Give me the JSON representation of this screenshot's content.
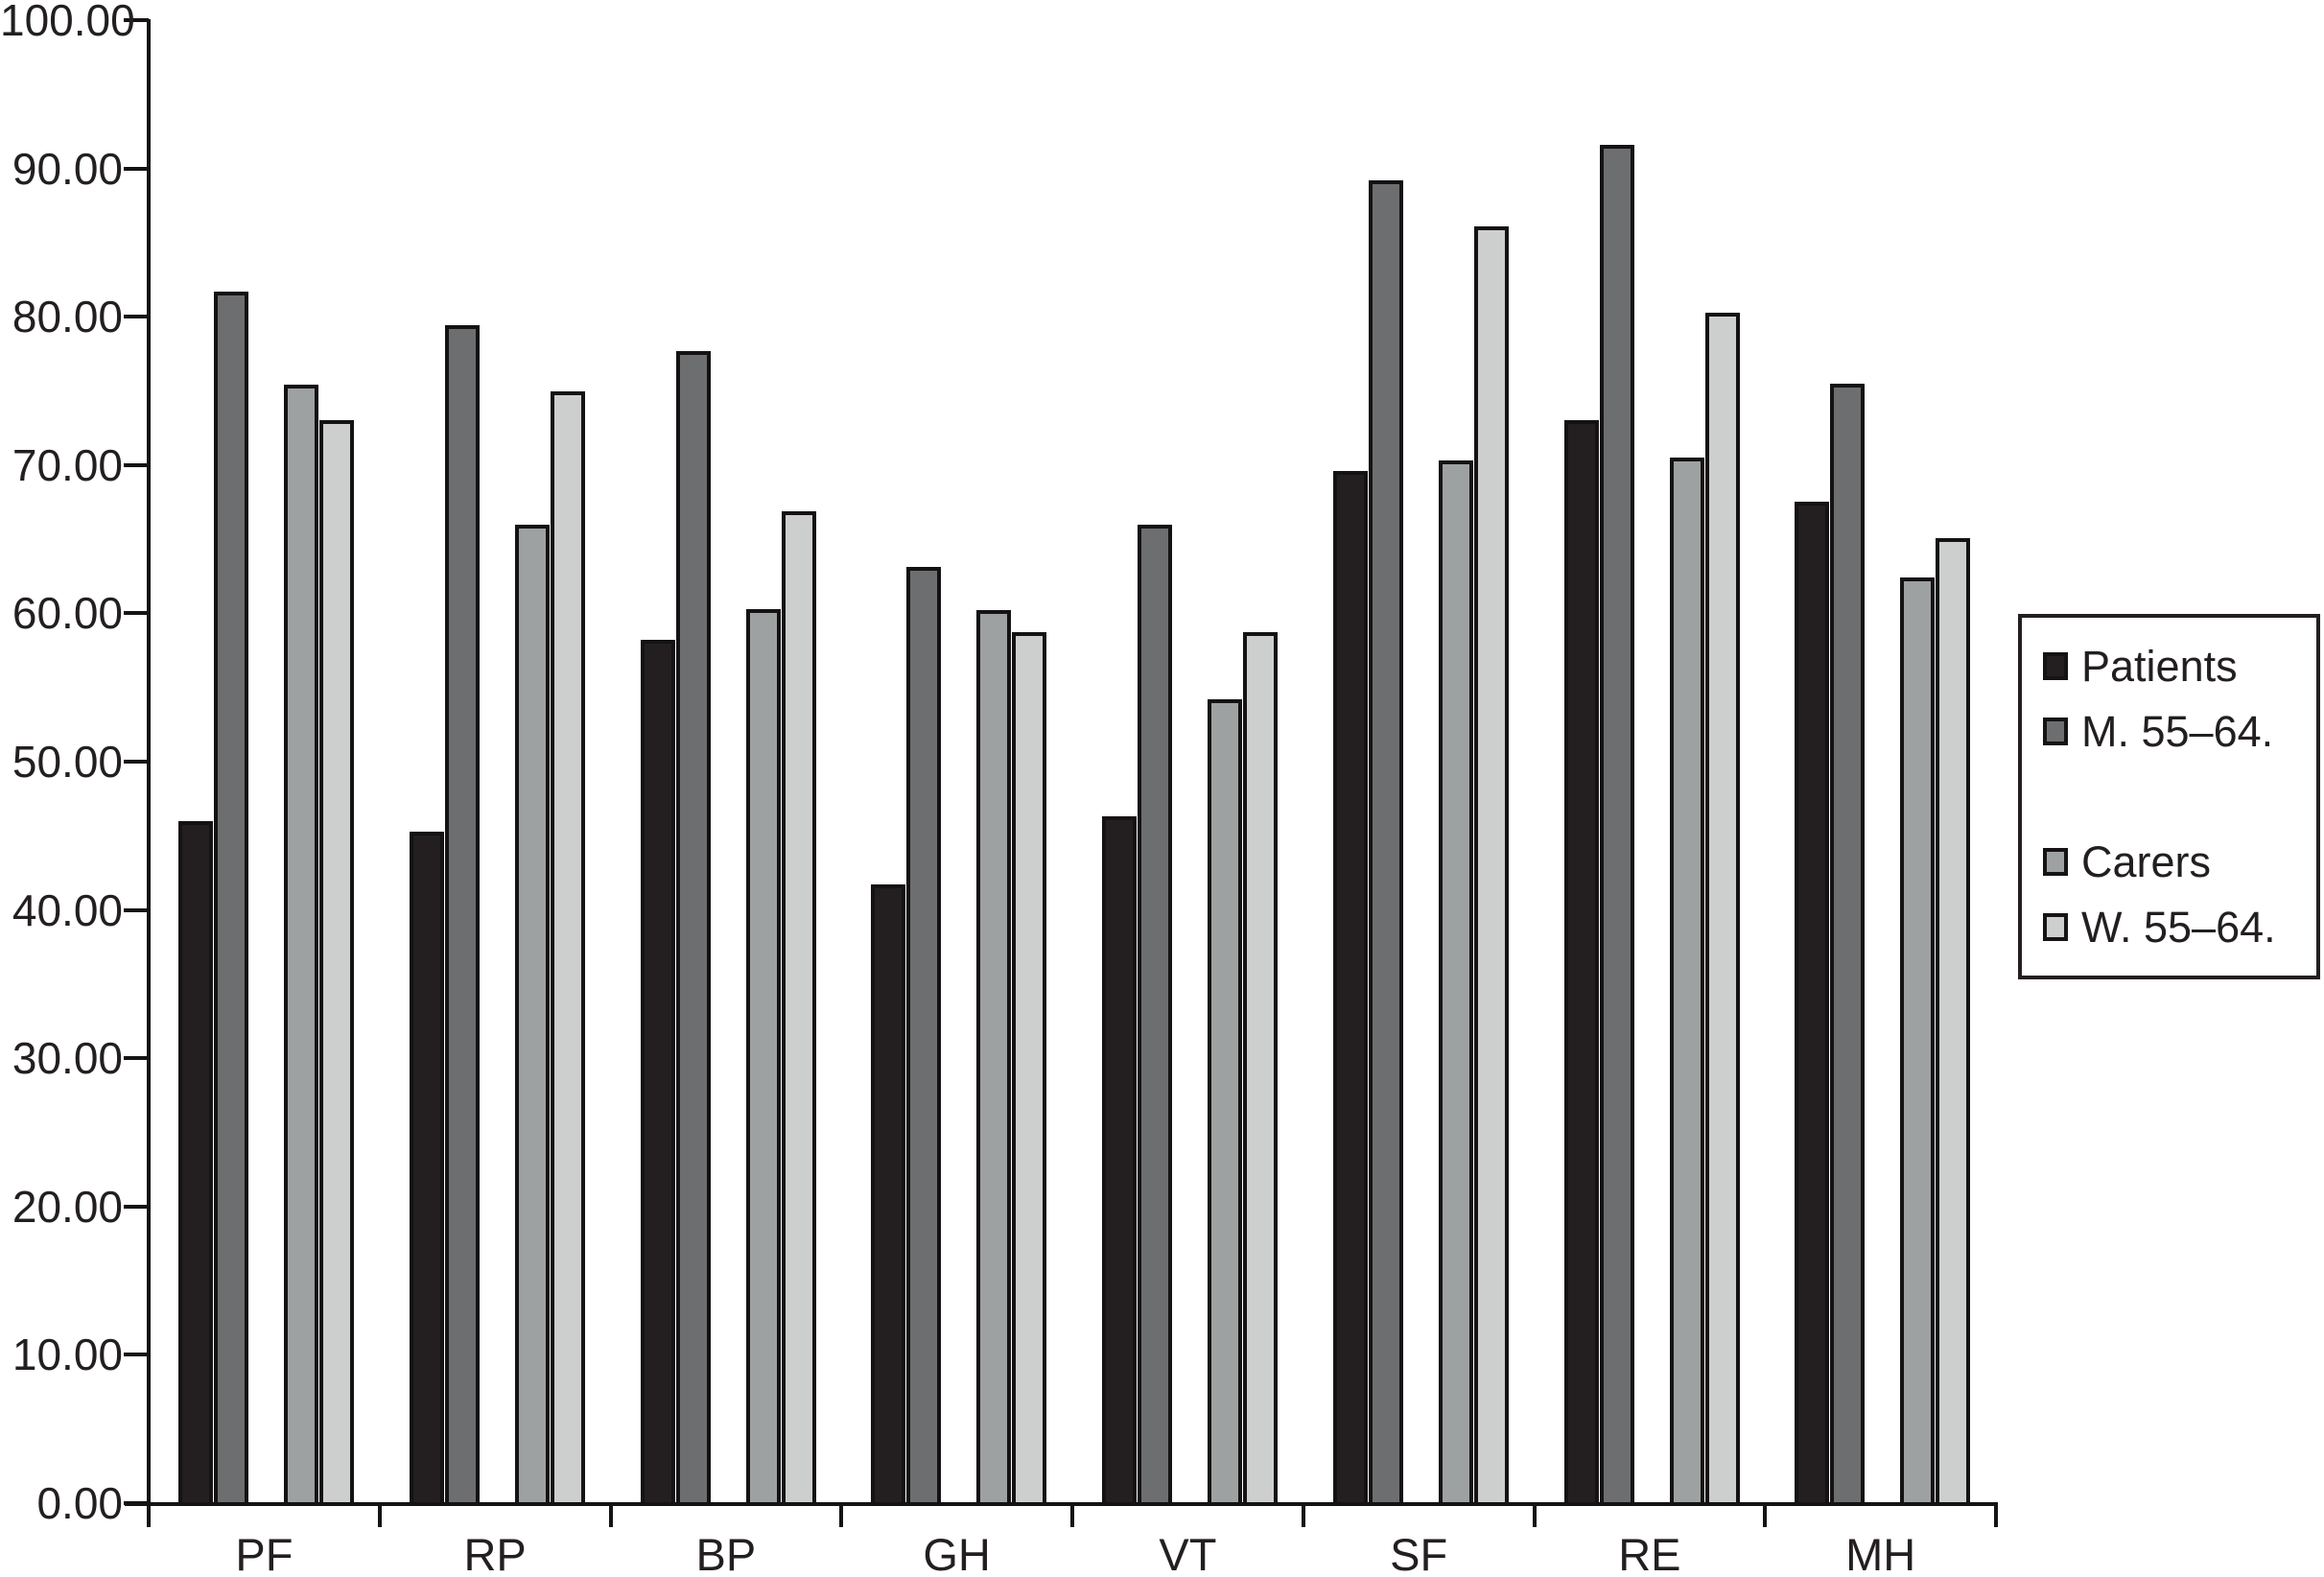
{
  "chart_data": {
    "type": "bar",
    "title": "",
    "xlabel": "",
    "ylabel": "",
    "categories": [
      "PF",
      "RP",
      "BP",
      "GH",
      "VT",
      "SF",
      "RE",
      "MH"
    ],
    "series": [
      {
        "name": "Patients",
        "color": "#231f20",
        "values": [
          46.0,
          45.3,
          58.2,
          41.7,
          46.3,
          69.6,
          73.0,
          67.5
        ]
      },
      {
        "name": "M. 55–64.",
        "color": "#6d6e70",
        "values": [
          81.7,
          79.4,
          77.7,
          63.1,
          66.0,
          89.2,
          91.6,
          75.5
        ]
      },
      {
        "name": "Carers",
        "color": "#9ea1a2",
        "values": [
          75.4,
          66.0,
          60.3,
          60.2,
          54.2,
          70.3,
          70.5,
          62.4
        ]
      },
      {
        "name": "W. 55–64.",
        "color": "#cdcfce",
        "values": [
          73.0,
          75.0,
          66.9,
          58.7,
          58.7,
          86.1,
          80.3,
          65.1
        ]
      }
    ],
    "ylim": [
      0,
      100
    ],
    "ytick_step": 10,
    "ytick_labels": [
      "0.00",
      "10.00",
      "20.00",
      "30.00",
      "40.00",
      "50.00",
      "60.00",
      "70.00",
      "80.00",
      "90.00",
      "100.00"
    ],
    "grid": false,
    "legend_position": "right",
    "legend_items": [
      "Patients",
      "M. 55–64.",
      "Carers",
      "W. 55–64."
    ],
    "axis_color": "#151314",
    "bar_outline_color": "#141213",
    "background_color": "#ffffff"
  }
}
